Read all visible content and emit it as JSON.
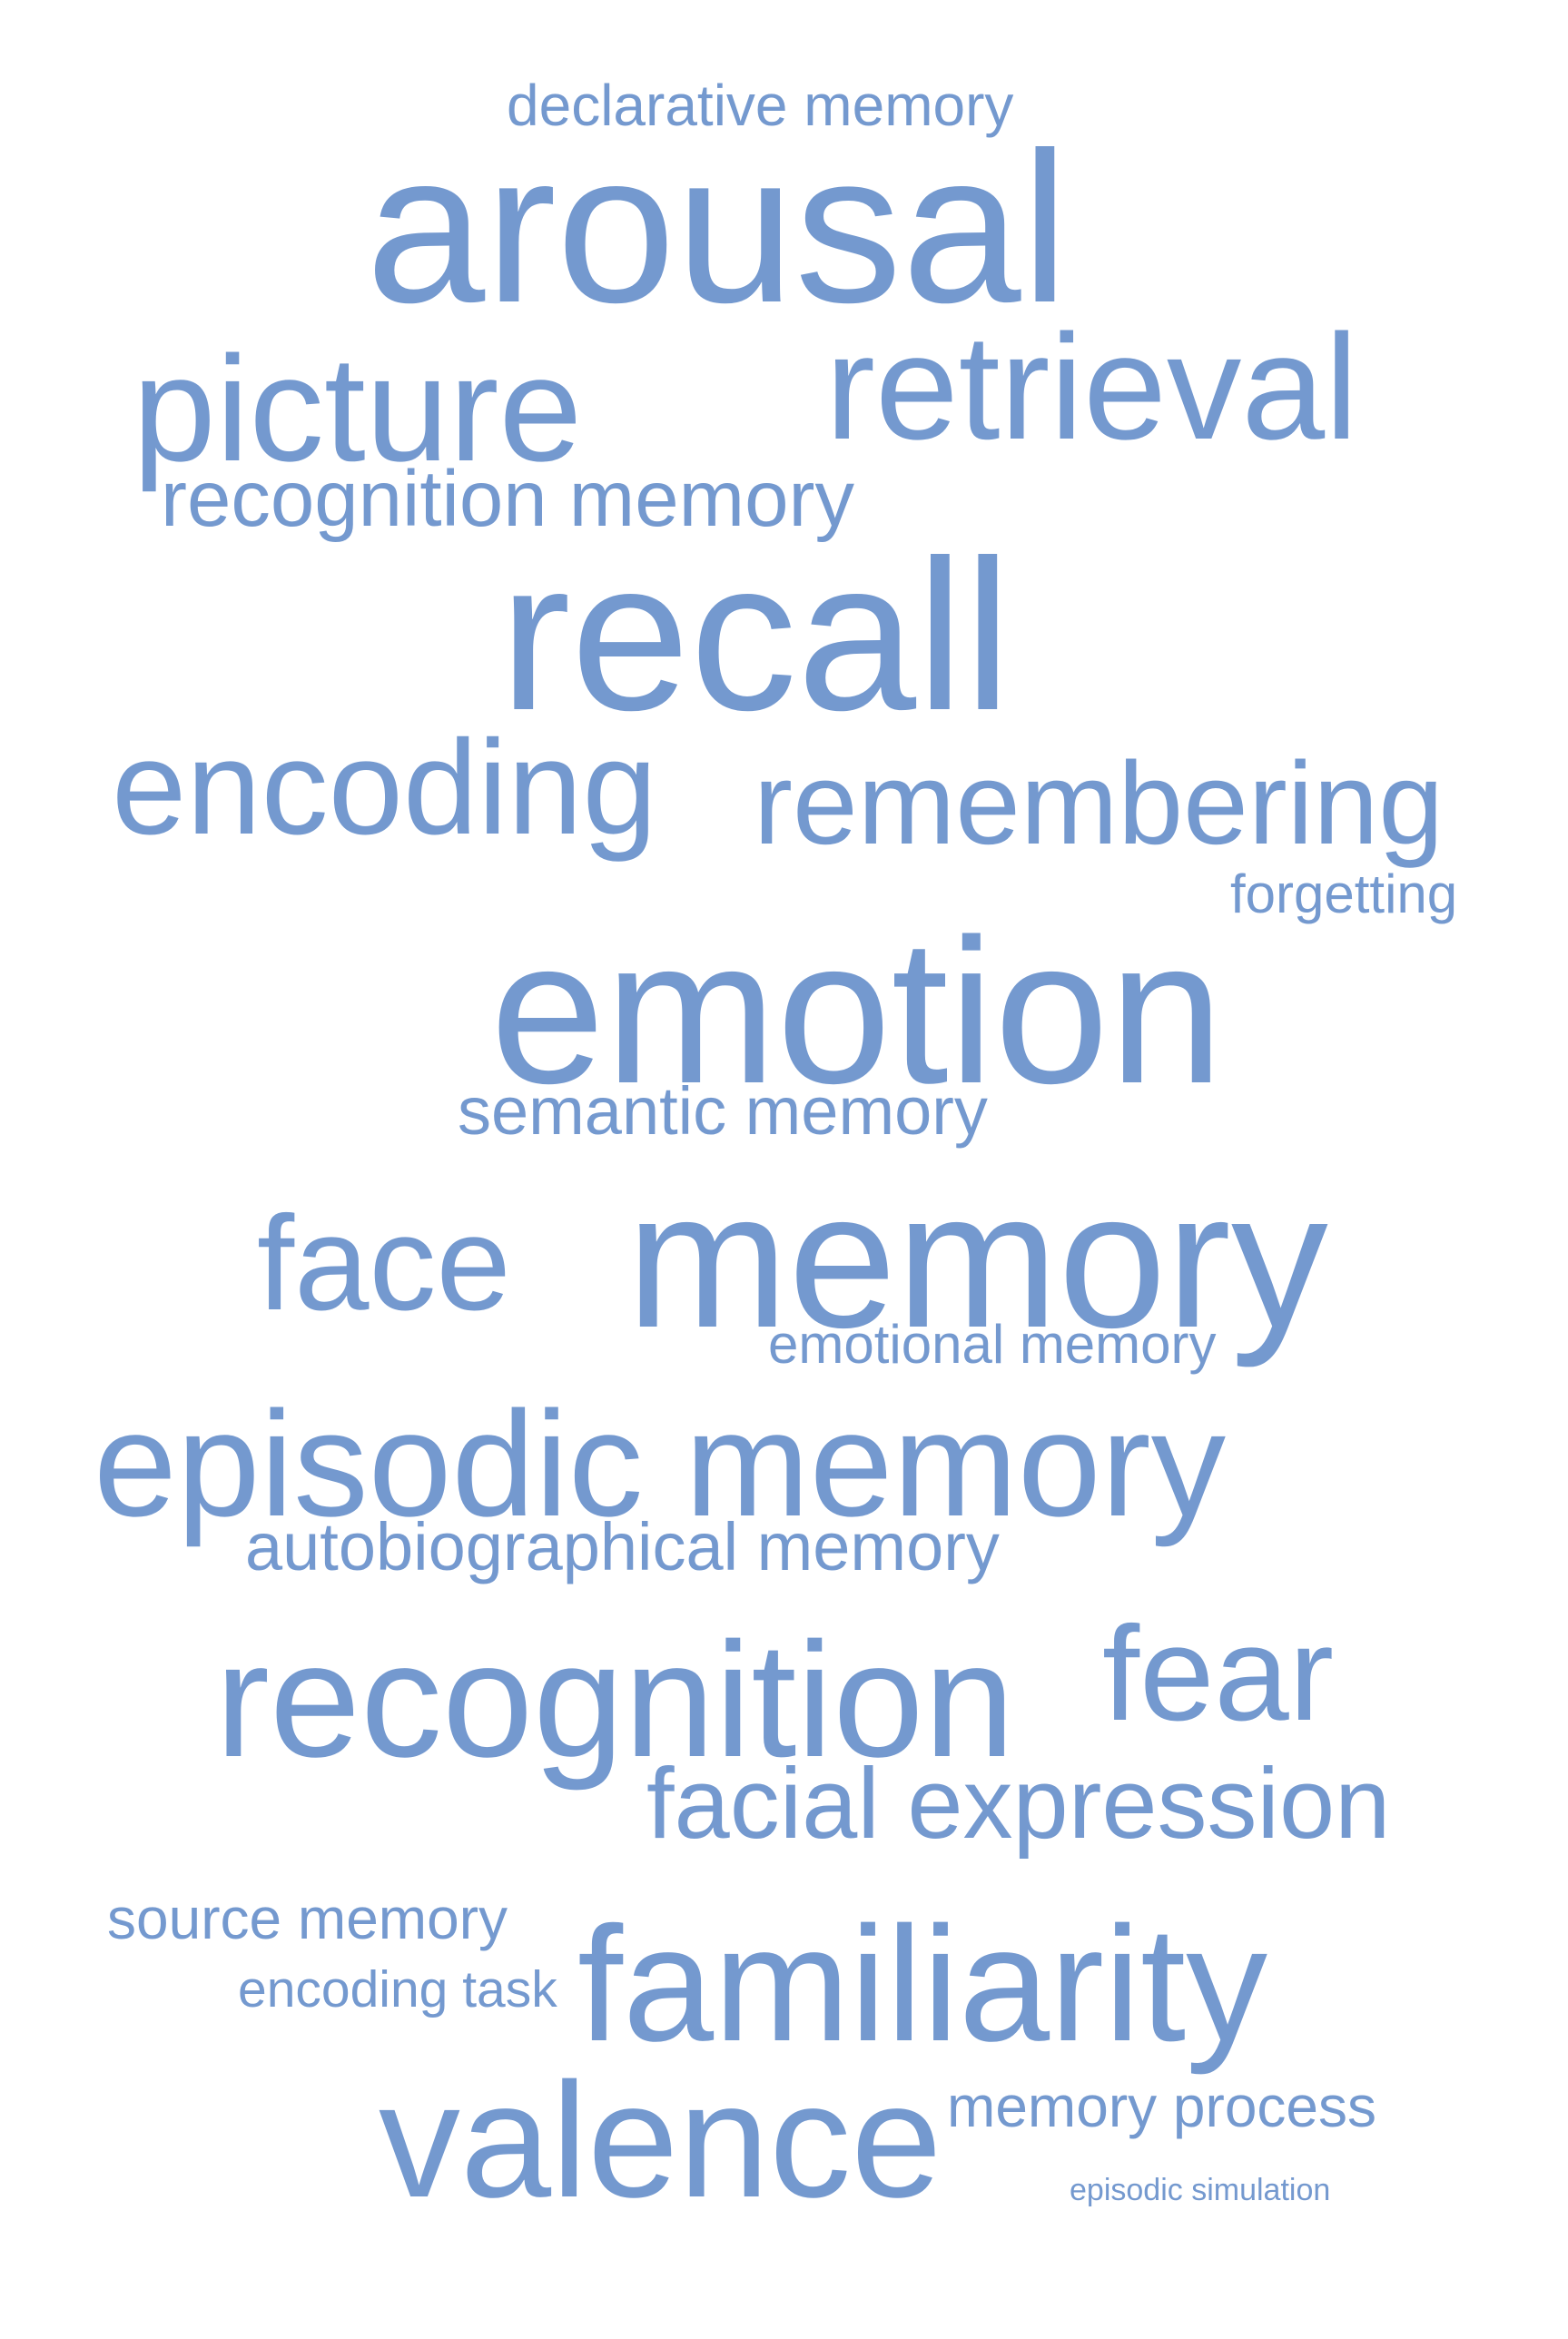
{
  "cloud": {
    "color": "#7499cf",
    "background": "#ffffff",
    "words": {
      "declarative_memory": "declarative memory",
      "arousal": "arousal",
      "picture": "picture",
      "retrieval": "retrieval",
      "recognition_memory": "recognition memory",
      "recall": "recall",
      "encoding": "encoding",
      "remembering": "remembering",
      "forgetting": "forgetting",
      "emotion": "emotion",
      "semantic_memory": "semantic memory",
      "face": "face",
      "memory": "memory",
      "emotional_memory": "emotional memory",
      "episodic_memory": "episodic memory",
      "autobiographical_memory": "autobiographical memory",
      "recognition": "recognition",
      "fear": "fear",
      "facial_expression": "facial expression",
      "source_memory": "source memory",
      "familiarity": "familiarity",
      "encoding_task": "encoding task",
      "valence": "valence",
      "memory_process": "memory process",
      "episodic_simulation": "episodic simulation"
    }
  }
}
